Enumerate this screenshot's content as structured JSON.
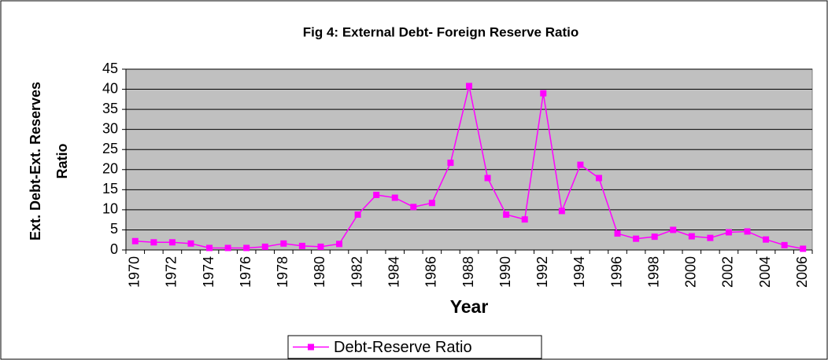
{
  "chart_data": {
    "type": "line",
    "title": "Fig 4: External Debt- Foreign Reserve Ratio",
    "y_label": [
      "Ext. Debt-Ext. Reserves",
      "Ratio"
    ],
    "x_label": "Year",
    "categories": [
      "1970",
      null,
      "1972",
      null,
      "1974",
      null,
      "1976",
      null,
      "1978",
      null,
      "1980",
      null,
      "1982",
      null,
      "1984",
      null,
      "1986",
      null,
      "1988",
      null,
      "1990",
      null,
      "1992",
      null,
      "1994",
      null,
      "1996",
      null,
      "1998",
      null,
      "2000",
      null,
      "2002",
      null,
      "2004",
      null,
      "2006"
    ],
    "series": [
      {
        "name": "Debt-Reserve Ratio",
        "color": "#ff00ff",
        "values": [
          2.2,
          1.9,
          1.9,
          1.6,
          0.5,
          0.5,
          0.5,
          0.8,
          1.6,
          1.0,
          0.8,
          1.5,
          8.8,
          13.7,
          13.0,
          10.7,
          11.7,
          21.7,
          40.8,
          17.9,
          8.8,
          7.6,
          39.0,
          9.7,
          21.2,
          17.9,
          4.1,
          2.8,
          3.3,
          5.0,
          3.4,
          3.0,
          4.4,
          4.6,
          2.6,
          1.2,
          0.3
        ]
      }
    ],
    "ylim": [
      0,
      45
    ],
    "yticks": [
      0,
      5,
      10,
      15,
      20,
      25,
      30,
      35,
      40,
      45
    ],
    "grid": true,
    "plot_background": "#c0c0c0",
    "legend": "bottom"
  }
}
